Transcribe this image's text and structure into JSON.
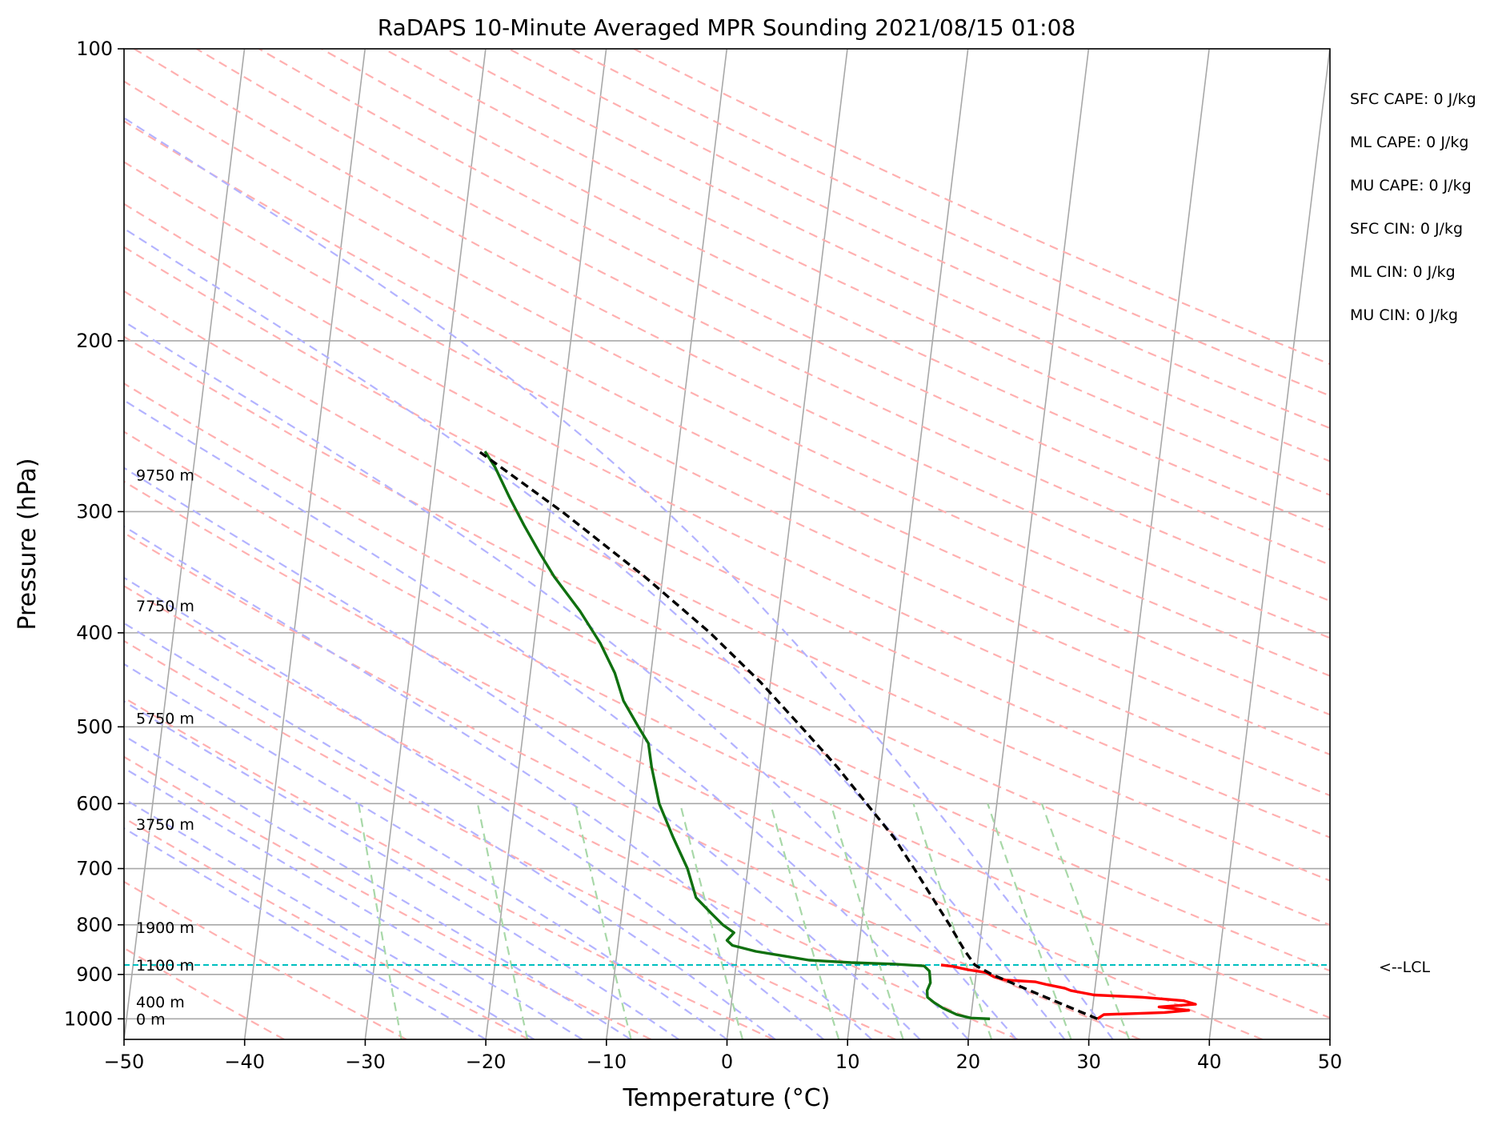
{
  "chart_data": {
    "type": "line",
    "subtype": "skew-t log-p sounding",
    "title": "RaDAPS 10-Minute Averaged MPR Sounding 2021/08/15 01:08",
    "xlabel": "Temperature (°C)",
    "ylabel": "Pressure (hPa)",
    "xlim": [
      -50,
      50
    ],
    "ylim": [
      1050,
      100
    ],
    "y_scale": "log",
    "x_ticks": [
      -50,
      -40,
      -30,
      -20,
      -10,
      0,
      10,
      20,
      30,
      40,
      50
    ],
    "x_tick_labels": [
      "−50",
      "−40",
      "−30",
      "−20",
      "−10",
      "0",
      "10",
      "20",
      "30",
      "40",
      "50"
    ],
    "y_ticks": [
      100,
      200,
      300,
      400,
      500,
      600,
      700,
      800,
      900,
      1000
    ],
    "y_tick_labels": [
      "100",
      "200",
      "300",
      "400",
      "500",
      "600",
      "700",
      "800",
      "900",
      "1000"
    ],
    "grid": true,
    "height_labels": [
      {
        "p": 1000,
        "label": "0 m"
      },
      {
        "p": 960,
        "label": "400 m"
      },
      {
        "p": 880,
        "label": "1100 m"
      },
      {
        "p": 805,
        "label": "1900 m"
      },
      {
        "p": 630,
        "label": "3750 m"
      },
      {
        "p": 490,
        "label": "5750 m"
      },
      {
        "p": 375,
        "label": "7750 m"
      },
      {
        "p": 275,
        "label": "9750 m"
      }
    ],
    "indices": [
      "SFC CAPE: 0 J/kg",
      "ML CAPE: 0 J/kg",
      "MU CAPE: 0 J/kg",
      "SFC CIN: 0 J/kg",
      "ML CIN: 0 J/kg",
      "MU CIN: 0 J/kg"
    ],
    "lcl": {
      "p": 880,
      "label": "<--LCL",
      "color": "#00bfbf"
    },
    "series": [
      {
        "role": "temperature",
        "color": "#ff0000",
        "points": [
          [
            1000,
            30.5
          ],
          [
            990,
            31
          ],
          [
            985,
            36
          ],
          [
            980,
            38
          ],
          [
            972,
            35.5
          ],
          [
            966,
            38.5
          ],
          [
            958,
            37.5
          ],
          [
            950,
            34
          ],
          [
            945,
            30
          ],
          [
            935,
            28
          ],
          [
            930,
            27.5
          ],
          [
            922,
            26
          ],
          [
            916,
            25
          ],
          [
            912,
            22.5
          ],
          [
            905,
            21.5
          ],
          [
            896,
            20.8
          ],
          [
            890,
            19.3
          ],
          [
            883,
            18
          ],
          [
            880,
            17
          ]
        ]
      },
      {
        "role": "dewpoint",
        "color": "#107010",
        "points": [
          [
            1000,
            21.6
          ],
          [
            998,
            20
          ],
          [
            990,
            18.8
          ],
          [
            975,
            17.6
          ],
          [
            962,
            16.8
          ],
          [
            950,
            16.2
          ],
          [
            935,
            16.1
          ],
          [
            918,
            16.3
          ],
          [
            905,
            16.2
          ],
          [
            893,
            16.1
          ],
          [
            882,
            15.6
          ],
          [
            878,
            13
          ],
          [
            875,
            9.5
          ],
          [
            870,
            6
          ],
          [
            862,
            4
          ],
          [
            852,
            1.5
          ],
          [
            840,
            -0.5
          ],
          [
            830,
            -1
          ],
          [
            815,
            -0.5
          ],
          [
            800,
            -1.5
          ],
          [
            780,
            -2.5
          ],
          [
            750,
            -4
          ],
          [
            700,
            -5
          ],
          [
            650,
            -6.5
          ],
          [
            600,
            -8
          ],
          [
            550,
            -9
          ],
          [
            520,
            -9.5
          ],
          [
            500,
            -10.5
          ],
          [
            470,
            -12
          ],
          [
            440,
            -13
          ],
          [
            410,
            -14.5
          ],
          [
            380,
            -16.5
          ],
          [
            350,
            -19
          ],
          [
            330,
            -20.5
          ],
          [
            310,
            -22
          ],
          [
            290,
            -23.5
          ],
          [
            270,
            -25
          ],
          [
            260,
            -26
          ]
        ]
      },
      {
        "role": "parcel path",
        "color": "#000000",
        "points": [
          [
            1000,
            30.5
          ],
          [
            950,
            26
          ],
          [
            900,
            21.3
          ],
          [
            880,
            19.8
          ],
          [
            850,
            18.8
          ],
          [
            800,
            17.3
          ],
          [
            750,
            15.6
          ],
          [
            700,
            13.8
          ],
          [
            650,
            11.8
          ],
          [
            600,
            9.2
          ],
          [
            550,
            6.4
          ],
          [
            500,
            3
          ],
          [
            450,
            -0.8
          ],
          [
            400,
            -5.5
          ],
          [
            350,
            -11.5
          ],
          [
            300,
            -19
          ],
          [
            260,
            -26.5
          ]
        ]
      }
    ],
    "reference_lines": {
      "isotherm_color": "#a8a8a8",
      "dry_adiabat_color": "#ffb0b0",
      "moist_adiabat_color": "#b3b3ff",
      "mixing_ratio_color": "#a8d8a8",
      "isobar_color": "#a8a8a8"
    }
  }
}
